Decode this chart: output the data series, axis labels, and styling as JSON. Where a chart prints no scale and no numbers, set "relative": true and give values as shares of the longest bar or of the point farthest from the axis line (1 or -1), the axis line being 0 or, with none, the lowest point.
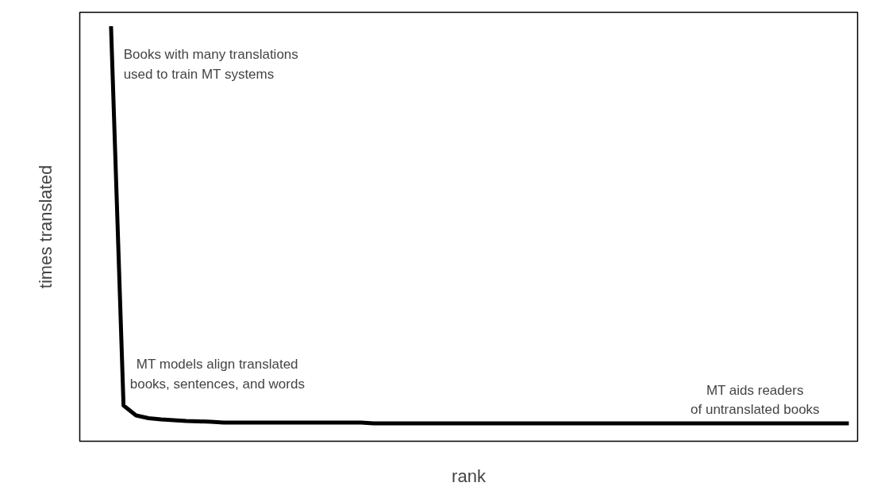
{
  "chart_data": {
    "type": "line",
    "relative": true,
    "xlabel": "rank",
    "ylabel": "times translated",
    "tick_labels": false,
    "grid": false,
    "marker": "none",
    "line_style": "solid",
    "categories": [
      null,
      null,
      null,
      null,
      null,
      null,
      null,
      null,
      null,
      null,
      null,
      null,
      null,
      null,
      null,
      null,
      null,
      null,
      null,
      null,
      null,
      null,
      null,
      null,
      null,
      null,
      null,
      null,
      null,
      null,
      null,
      null,
      null,
      null,
      null,
      null,
      null,
      null,
      null,
      null,
      null,
      null,
      null,
      null,
      null,
      null,
      null,
      null,
      null,
      null,
      null,
      null,
      null,
      null,
      null,
      null,
      null,
      null,
      null,
      null
    ],
    "series": [
      {
        "color": "#000000",
        "values": [
          1.0,
          0.045,
          0.02,
          0.013,
          0.01,
          0.008,
          0.006,
          0.005,
          0.004,
          0.002,
          0.002,
          0.002,
          0.002,
          0.002,
          0.002,
          0.002,
          0.002,
          0.002,
          0.002,
          0.002,
          0.002,
          0,
          0,
          0,
          0,
          0,
          0,
          0,
          0,
          0,
          0,
          0,
          0,
          0,
          0,
          0,
          0,
          0,
          0,
          0,
          0,
          0,
          0,
          0,
          0,
          0,
          0,
          0,
          0,
          0,
          0,
          0,
          0,
          0,
          0,
          0,
          0,
          0,
          0,
          0
        ]
      }
    ],
    "annotations": [
      "Books with many translations\nused to train MT systems",
      "MT models align translated\nbooks, sentences, and words",
      "MT aids readers\nof untranslated books"
    ]
  }
}
